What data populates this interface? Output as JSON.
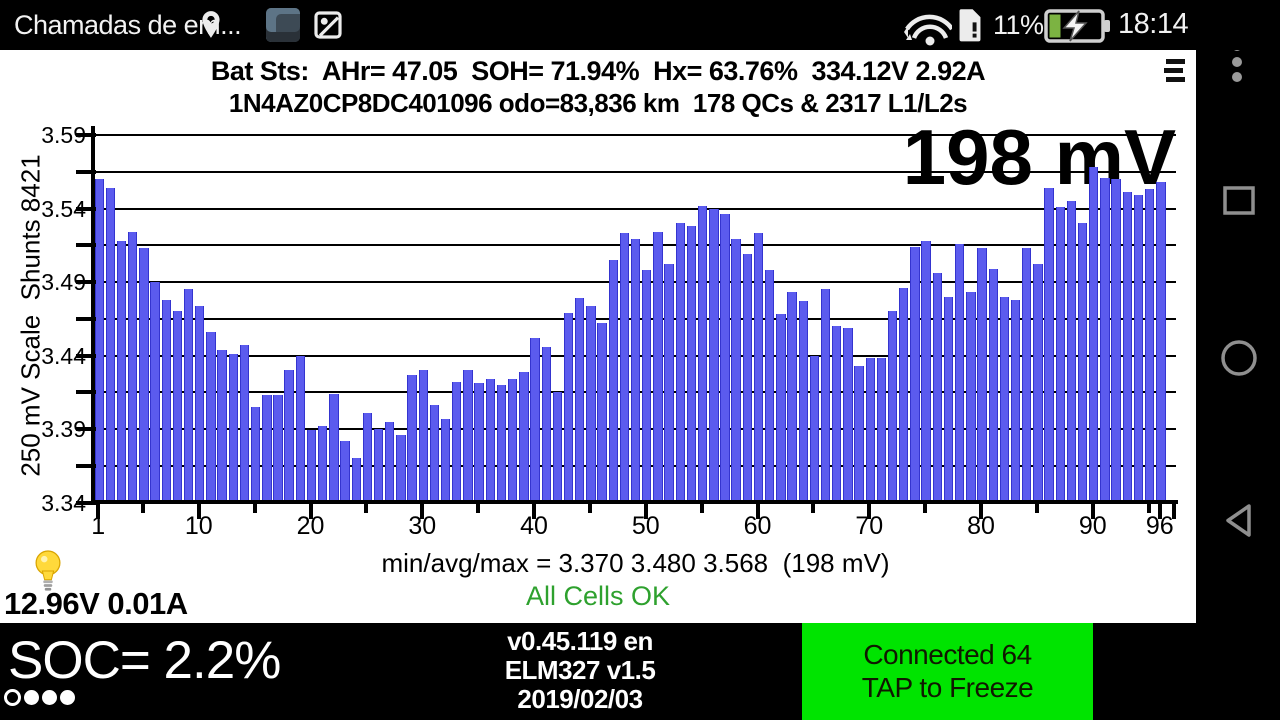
{
  "status_bar": {
    "notification_text": "Chamadas de em...",
    "battery_percent": "11%",
    "time": "18:14",
    "icons": [
      "location-pin",
      "app-thumbnail",
      "screenshot",
      "wifi",
      "sim-alert",
      "battery-charging"
    ]
  },
  "header": {
    "line1": "Bat Sts:  AHr= 47.05  SOH= 71.94%  Hx= 63.76%  334.12V 2.92A",
    "line2": "1N4AZ0CP8DC401096 odo=83,836 km  178 QCs & 2317 L1/L2s"
  },
  "chart_data": {
    "type": "bar",
    "title": "",
    "ylabel": "250 mV Scale  Shunts 8421",
    "big_label": "198 mV",
    "ylim": [
      3.34,
      3.59
    ],
    "grid_step": 0.025,
    "grid_on": true,
    "ytick_labels": [
      "3.59",
      "3.54",
      "3.49",
      "3.44",
      "3.39",
      "3.34"
    ],
    "xtick_major": [
      1,
      10,
      20,
      30,
      40,
      50,
      60,
      70,
      80,
      90,
      96
    ],
    "xtick_minor": [
      5,
      15,
      25,
      35,
      45,
      55,
      65,
      75,
      85,
      95
    ],
    "xtick_labels": [
      "1",
      "10",
      "20",
      "30",
      "40",
      "50",
      "60",
      "70",
      "80",
      "90",
      "96"
    ],
    "categories_note": "cell numbers 1..96",
    "values": [
      3.56,
      3.554,
      3.518,
      3.524,
      3.513,
      3.49,
      3.478,
      3.47,
      3.485,
      3.474,
      3.456,
      3.444,
      3.441,
      3.447,
      3.405,
      3.413,
      3.413,
      3.43,
      3.44,
      3.389,
      3.392,
      3.414,
      3.382,
      3.37,
      3.401,
      3.39,
      3.395,
      3.386,
      3.427,
      3.43,
      3.406,
      3.397,
      3.422,
      3.43,
      3.421,
      3.424,
      3.42,
      3.424,
      3.429,
      3.452,
      3.446,
      3.415,
      3.469,
      3.479,
      3.474,
      3.462,
      3.505,
      3.523,
      3.519,
      3.498,
      3.524,
      3.502,
      3.53,
      3.528,
      3.542,
      3.54,
      3.536,
      3.519,
      3.509,
      3.523,
      3.498,
      3.468,
      3.483,
      3.477,
      3.44,
      3.485,
      3.46,
      3.459,
      3.433,
      3.438,
      3.438,
      3.47,
      3.486,
      3.514,
      3.518,
      3.496,
      3.48,
      3.516,
      3.483,
      3.513,
      3.499,
      3.48,
      3.478,
      3.513,
      3.502,
      3.554,
      3.541,
      3.545,
      3.53,
      3.568,
      3.561,
      3.56,
      3.551,
      3.549,
      3.553,
      3.558
    ],
    "bar_color": "#5b5bee",
    "summary_line": "min/avg/max = 3.370 3.480 3.568  (198 mV)",
    "min": 3.37,
    "avg": 3.48,
    "max": 3.568,
    "spread_mv": 198,
    "status_text": "All Cells OK",
    "status_color": "#2ea12e"
  },
  "aux": {
    "accessory_reading": "12.96V 0.01A"
  },
  "bottom_bar": {
    "soc": "SOC= 2.2%",
    "version": "v0.45.119 en",
    "adapter": "ELM327 v1.5",
    "date": "2019/02/03",
    "button_line1": "Connected 64",
    "button_line2": "TAP to Freeze",
    "button_color": "#00e400"
  }
}
